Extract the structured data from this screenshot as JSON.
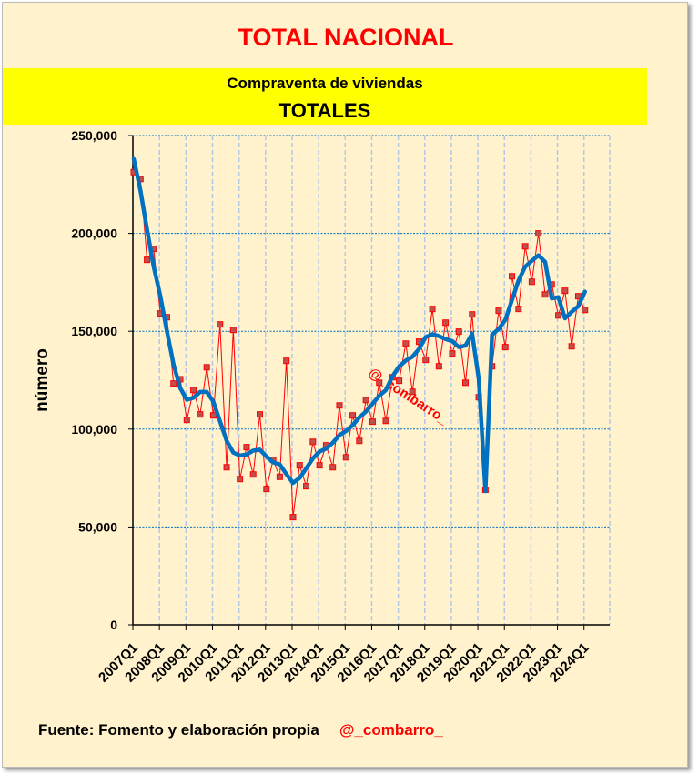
{
  "header": {
    "title": "TOTAL NACIONAL",
    "subtitle": "Compraventa de viviendas",
    "subtitle2": "TOTALES"
  },
  "footer": {
    "source": "Fuente: Fomento y elaboración propia",
    "handle": "@_combarro_"
  },
  "colors": {
    "title": "#FF0000",
    "band": "#FFFF00",
    "background": "#FFF2CC",
    "series_points": "#FF0000",
    "trend": "#0070C0"
  },
  "chart_data": {
    "type": "line",
    "title": "TOTAL NACIONAL",
    "ylabel": "número",
    "xlabel": "",
    "ylim": [
      0,
      250000
    ],
    "yticks": [
      0,
      50000,
      100000,
      150000,
      200000,
      250000
    ],
    "ytick_labels": [
      "0",
      "50,000",
      "100,000",
      "150,000",
      "200,000",
      "250,000"
    ],
    "xtick_labels": [
      "2007Q1",
      "2008Q1",
      "2009Q1",
      "2010Q1",
      "2011Q1",
      "2012Q1",
      "2013Q1",
      "2014Q1",
      "2015Q1",
      "2016Q1",
      "2017Q1",
      "2018Q1",
      "2019Q1",
      "2020Q1",
      "2021Q1",
      "2022Q1",
      "2023Q1",
      "2024Q1"
    ],
    "grid": true,
    "watermark": "@_combarro_",
    "x_start": "2007Q1",
    "series": [
      {
        "style": "red thin line with square markers",
        "values": [
          231300,
          227800,
          186500,
          192100,
          159100,
          157200,
          123300,
          125500,
          104700,
          120000,
          107500,
          131600,
          107000,
          153500,
          80500,
          150700,
          74500,
          90800,
          76800,
          107500,
          69400,
          84300,
          75600,
          134900,
          55000,
          81500,
          70800,
          93500,
          81500,
          91700,
          80500,
          112100,
          85600,
          107000,
          94000,
          114900,
          103800,
          123700,
          104200,
          126500,
          124700,
          143700,
          119100,
          144700,
          135400,
          161400,
          132100,
          154400,
          138600,
          149800,
          123700,
          158600,
          116300,
          69000,
          132100,
          160500,
          141900,
          178100,
          161400,
          193400,
          175300,
          200000,
          168800,
          173900,
          158100,
          170700,
          142300,
          167900,
          160900
        ]
      },
      {
        "style": "thick blue trend line",
        "values": [
          238000,
          222000,
          202000,
          183000,
          168000,
          150000,
          133000,
          121000,
          115000,
          116000,
          119000,
          119000,
          114000,
          104000,
          94000,
          88000,
          86500,
          87000,
          89000,
          89500,
          86000,
          83000,
          82000,
          77000,
          72500,
          75000,
          80000,
          85000,
          88500,
          90000,
          93000,
          97000,
          99000,
          102000,
          106000,
          109000,
          113000,
          117000,
          120000,
          127000,
          132000,
          135000,
          137000,
          141000,
          147000,
          148500,
          147500,
          146000,
          145000,
          141900,
          142700,
          148800,
          125600,
          68300,
          148200,
          151200,
          155800,
          165900,
          176000,
          183000,
          186000,
          188800,
          185400,
          166800,
          167400,
          156600,
          159900,
          162800,
          170200
        ]
      }
    ]
  }
}
